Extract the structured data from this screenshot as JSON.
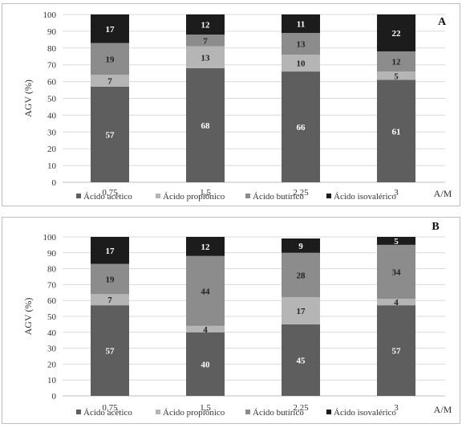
{
  "chart_data": [
    {
      "type": "bar",
      "stacked": true,
      "panel_label": "A",
      "categories": [
        "0,75",
        "1,5",
        "2,25",
        "3"
      ],
      "xlabel": "A/M",
      "ylabel": "AGV (%)",
      "ylim": [
        0,
        100
      ],
      "yticks": [
        0,
        10,
        20,
        30,
        40,
        50,
        60,
        70,
        80,
        90,
        100
      ],
      "grid": true,
      "legend": "bottom",
      "series": [
        {
          "name": "Ácido acético",
          "color": "#5e5e5e",
          "label_color": "#ffffff",
          "values": [
            57,
            68,
            66,
            61
          ]
        },
        {
          "name": "Ácido propiônico",
          "color": "#b5b5b5",
          "label_color": "#222222",
          "values": [
            7,
            13,
            10,
            5
          ]
        },
        {
          "name": "Ácido butírico",
          "color": "#8c8c8c",
          "label_color": "#222222",
          "values": [
            19,
            7,
            13,
            12
          ]
        },
        {
          "name": "Ácido isovalérico",
          "color": "#1c1c1c",
          "label_color": "#ffffff",
          "values": [
            17,
            12,
            11,
            22
          ]
        }
      ]
    },
    {
      "type": "bar",
      "stacked": true,
      "panel_label": "B",
      "categories": [
        "0,75",
        "1,5",
        "2,25",
        "3"
      ],
      "xlabel": "A/M",
      "ylabel": "AGV (%)",
      "ylim": [
        0,
        100
      ],
      "yticks": [
        0,
        10,
        20,
        30,
        40,
        50,
        60,
        70,
        80,
        90,
        100
      ],
      "grid": true,
      "legend": "bottom",
      "series": [
        {
          "name": "Ácido acético",
          "color": "#5e5e5e",
          "label_color": "#ffffff",
          "values": [
            57,
            40,
            45,
            57
          ]
        },
        {
          "name": "Ácido propiônico",
          "color": "#b5b5b5",
          "label_color": "#222222",
          "values": [
            7,
            4,
            17,
            4
          ]
        },
        {
          "name": "Ácido butírico",
          "color": "#8c8c8c",
          "label_color": "#222222",
          "values": [
            19,
            44,
            28,
            34
          ]
        },
        {
          "name": "Ácido isovalérico",
          "color": "#1c1c1c",
          "label_color": "#ffffff",
          "values": [
            17,
            12,
            9,
            5
          ]
        }
      ]
    }
  ]
}
